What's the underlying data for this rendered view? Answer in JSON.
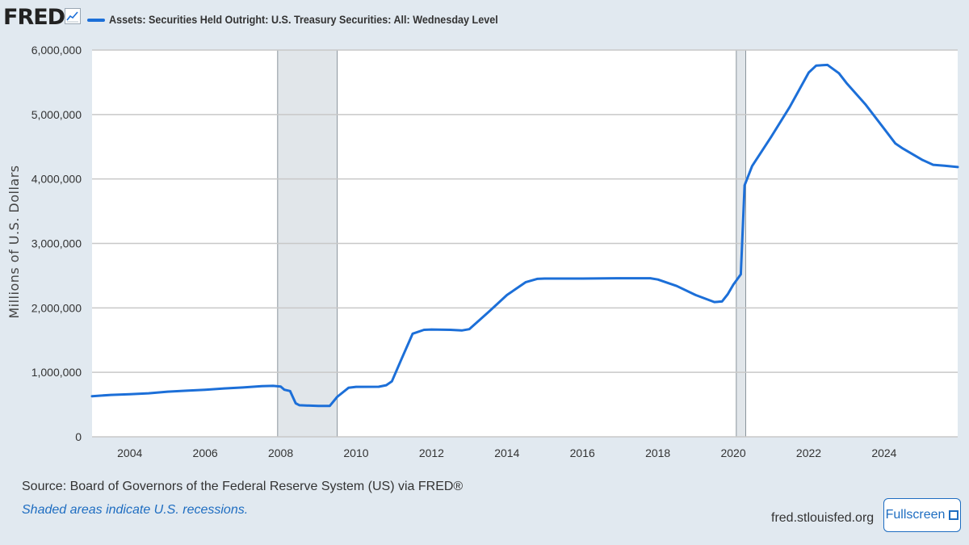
{
  "header": {
    "logo_text": "FRED",
    "logo_icon": "line-chart-icon"
  },
  "chart_data": {
    "type": "line",
    "title": "",
    "legend_position": "top-left",
    "grid": true,
    "ylabel": "Millions of U.S. Dollars",
    "xlabel": "",
    "x_range": [
      2003.0,
      2025.95
    ],
    "ylim": [
      0,
      6000000
    ],
    "y_ticks": [
      {
        "value": 0,
        "label": "0"
      },
      {
        "value": 1000000,
        "label": "1,000,000"
      },
      {
        "value": 2000000,
        "label": "2,000,000"
      },
      {
        "value": 3000000,
        "label": "3,000,000"
      },
      {
        "value": 4000000,
        "label": "4,000,000"
      },
      {
        "value": 5000000,
        "label": "5,000,000"
      },
      {
        "value": 6000000,
        "label": "6,000,000"
      }
    ],
    "x_ticks": [
      {
        "value": 2004,
        "label": "2004"
      },
      {
        "value": 2006,
        "label": "2006"
      },
      {
        "value": 2008,
        "label": "2008"
      },
      {
        "value": 2010,
        "label": "2010"
      },
      {
        "value": 2012,
        "label": "2012"
      },
      {
        "value": 2014,
        "label": "2014"
      },
      {
        "value": 2016,
        "label": "2016"
      },
      {
        "value": 2018,
        "label": "2018"
      },
      {
        "value": 2020,
        "label": "2020"
      },
      {
        "value": 2022,
        "label": "2022"
      },
      {
        "value": 2024,
        "label": "2024"
      }
    ],
    "recessions": [
      {
        "start": 2007.92,
        "end": 2009.5
      },
      {
        "start": 2020.08,
        "end": 2020.33
      }
    ],
    "series": [
      {
        "name": "Assets: Securities Held Outright: U.S. Treasury Securities: All: Wednesday Level",
        "color": "#1c6fd8",
        "points": [
          [
            2003.0,
            630000
          ],
          [
            2003.5,
            650000
          ],
          [
            2004.0,
            660000
          ],
          [
            2004.5,
            675000
          ],
          [
            2005.0,
            700000
          ],
          [
            2005.5,
            715000
          ],
          [
            2006.0,
            730000
          ],
          [
            2006.5,
            750000
          ],
          [
            2007.0,
            765000
          ],
          [
            2007.5,
            785000
          ],
          [
            2007.8,
            790000
          ],
          [
            2008.0,
            780000
          ],
          [
            2008.1,
            730000
          ],
          [
            2008.25,
            710000
          ],
          [
            2008.4,
            520000
          ],
          [
            2008.5,
            490000
          ],
          [
            2009.0,
            478000
          ],
          [
            2009.3,
            478000
          ],
          [
            2009.5,
            620000
          ],
          [
            2009.8,
            760000
          ],
          [
            2010.0,
            775000
          ],
          [
            2010.6,
            776000
          ],
          [
            2010.8,
            800000
          ],
          [
            2010.95,
            860000
          ],
          [
            2011.2,
            1200000
          ],
          [
            2011.5,
            1600000
          ],
          [
            2011.8,
            1660000
          ],
          [
            2012.0,
            1665000
          ],
          [
            2012.5,
            1660000
          ],
          [
            2012.8,
            1650000
          ],
          [
            2013.0,
            1670000
          ],
          [
            2013.5,
            1930000
          ],
          [
            2014.0,
            2200000
          ],
          [
            2014.5,
            2400000
          ],
          [
            2014.8,
            2450000
          ],
          [
            2015.0,
            2455000
          ],
          [
            2016.0,
            2455000
          ],
          [
            2017.0,
            2460000
          ],
          [
            2017.8,
            2460000
          ],
          [
            2018.0,
            2440000
          ],
          [
            2018.5,
            2340000
          ],
          [
            2019.0,
            2200000
          ],
          [
            2019.5,
            2090000
          ],
          [
            2019.7,
            2100000
          ],
          [
            2019.85,
            2210000
          ],
          [
            2020.0,
            2360000
          ],
          [
            2020.2,
            2520000
          ],
          [
            2020.3,
            3900000
          ],
          [
            2020.5,
            4200000
          ],
          [
            2021.0,
            4650000
          ],
          [
            2021.5,
            5120000
          ],
          [
            2022.0,
            5650000
          ],
          [
            2022.2,
            5760000
          ],
          [
            2022.5,
            5770000
          ],
          [
            2022.8,
            5640000
          ],
          [
            2023.0,
            5490000
          ],
          [
            2023.5,
            5160000
          ],
          [
            2024.0,
            4780000
          ],
          [
            2024.3,
            4550000
          ],
          [
            2024.5,
            4470000
          ],
          [
            2025.0,
            4300000
          ],
          [
            2025.3,
            4220000
          ],
          [
            2025.6,
            4205000
          ],
          [
            2025.95,
            4185000
          ]
        ]
      }
    ]
  },
  "footer": {
    "source": "Source: Board of Governors of the Federal Reserve System (US) via FRED®",
    "recession_note": "Shaded areas indicate U.S. recessions.",
    "site": "fred.stlouisfed.org",
    "fullscreen_label": "Fullscreen",
    "fullscreen_icon": "expand-icon"
  }
}
